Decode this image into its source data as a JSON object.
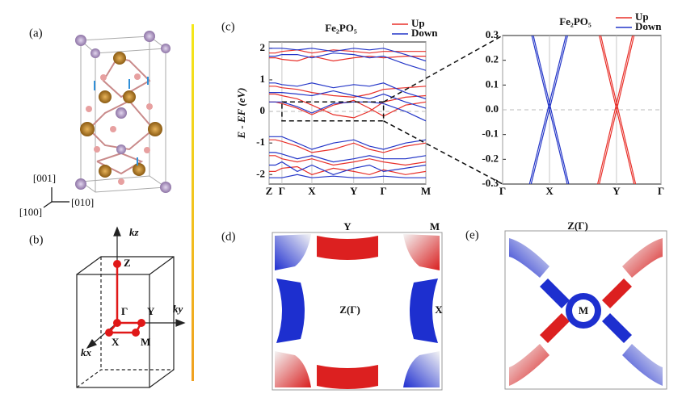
{
  "panel_labels": {
    "a": "(a)",
    "b": "(b)",
    "c": "(c)",
    "d": "(d)",
    "e": "(e)"
  },
  "crystal_axes": [
    "[001]",
    "[010]",
    "[100]"
  ],
  "brillouin_zone": {
    "kz": "kz",
    "ky": "ky",
    "kx": "kx",
    "Z": "Z",
    "G": "Γ",
    "Y": "Y",
    "X": "X",
    "M": "M"
  },
  "fermi_surface_d": {
    "Y": "Y",
    "M": "M",
    "center": "Z(Γ)",
    "X": "X"
  },
  "fermi_surface_e": {
    "top": "Z(Γ)",
    "center": "M"
  },
  "chart_data": [
    {
      "type": "line",
      "title": "Fe₂PO₅",
      "ylabel": "E - EF (eV)",
      "xlim": [
        0,
        1
      ],
      "ylim": [
        -2.3,
        2.2
      ],
      "yticks": [
        -2,
        -1,
        0,
        1,
        2
      ],
      "xticks": [
        {
          "value": 0,
          "label": "Z"
        },
        {
          "value": 0.082,
          "label": "Γ"
        },
        {
          "value": 0.273,
          "label": "X"
        },
        {
          "value": 0.54,
          "label": "Y"
        },
        {
          "value": 0.73,
          "label": "Γ"
        },
        {
          "value": 1,
          "label": "M"
        }
      ],
      "x": [
        0,
        0.04,
        0.082,
        0.18,
        0.273,
        0.41,
        0.54,
        0.64,
        0.73,
        0.87,
        1
      ],
      "series": [
        {
          "name": "Up",
          "color": "#e8302a",
          "lines": [
            {
              "values": [
                1.85,
                1.85,
                1.9,
                1.95,
                1.85,
                1.95,
                1.9,
                1.85,
                1.9,
                1.9,
                1.9
              ]
            },
            {
              "values": [
                1.7,
                1.7,
                1.65,
                1.6,
                1.75,
                1.6,
                1.7,
                1.75,
                1.7,
                1.75,
                1.75
              ]
            },
            {
              "values": [
                0.8,
                0.8,
                0.75,
                0.7,
                0.6,
                0.5,
                0.45,
                0.55,
                0.7,
                0.75,
                0.8
              ]
            },
            {
              "values": [
                0.55,
                0.55,
                0.5,
                0.4,
                0.2,
                -0.1,
                -0.2,
                0.0,
                0.3,
                0.45,
                0.5
              ]
            },
            {
              "values": [
                0.3,
                0.3,
                0.25,
                0.1,
                -0.1,
                0.2,
                0.35,
                0.1,
                -0.15,
                0.2,
                0.3
              ]
            },
            {
              "values": [
                -0.9,
                -0.9,
                -0.95,
                -1.1,
                -1.3,
                -1.2,
                -1.0,
                -1.2,
                -1.3,
                -1.1,
                -1.0
              ]
            },
            {
              "values": [
                -1.4,
                -1.4,
                -1.5,
                -1.6,
                -1.5,
                -1.7,
                -1.6,
                -1.5,
                -1.6,
                -1.7,
                -1.6
              ]
            },
            {
              "values": [
                -1.9,
                -1.9,
                -1.8,
                -1.75,
                -2.0,
                -1.8,
                -1.9,
                -2.0,
                -1.85,
                -2.0,
                -1.9
              ]
            }
          ]
        },
        {
          "name": "Down",
          "color": "#2436c8",
          "lines": [
            {
              "values": [
                2.0,
                2.0,
                2.0,
                1.95,
                2.0,
                1.9,
                2.0,
                1.95,
                2.0,
                1.8,
                1.6
              ]
            },
            {
              "values": [
                1.75,
                1.75,
                1.8,
                1.8,
                1.7,
                1.85,
                1.8,
                1.7,
                1.75,
                1.5,
                1.3
              ]
            },
            {
              "values": [
                0.9,
                0.9,
                0.85,
                0.8,
                0.9,
                0.75,
                0.85,
                0.8,
                0.9,
                0.6,
                0.4
              ]
            },
            {
              "values": [
                0.6,
                0.6,
                0.6,
                0.55,
                0.5,
                0.65,
                0.5,
                0.4,
                0.55,
                0.3,
                0.1
              ]
            },
            {
              "values": [
                0.3,
                0.3,
                0.3,
                0.15,
                -0.05,
                0.25,
                0.3,
                0.3,
                0.25,
                0.0,
                -0.3
              ]
            },
            {
              "values": [
                -0.8,
                -0.8,
                -0.8,
                -1.0,
                -1.2,
                -1.0,
                -0.9,
                -1.1,
                -1.2,
                -1.0,
                -0.9
              ]
            },
            {
              "values": [
                -1.3,
                -1.3,
                -1.35,
                -1.5,
                -1.4,
                -1.6,
                -1.5,
                -1.4,
                -1.5,
                -1.5,
                -1.4
              ]
            },
            {
              "values": [
                -1.7,
                -1.7,
                -1.6,
                -1.9,
                -1.7,
                -2.0,
                -1.8,
                -1.7,
                -1.9,
                -1.8,
                -1.7
              ]
            },
            {
              "values": [
                -2.1,
                -2.1,
                -2.1,
                -2.0,
                -2.1,
                -2.05,
                -2.1,
                -2.1,
                -2.05,
                -2.1,
                -2.1
              ]
            }
          ]
        }
      ]
    },
    {
      "type": "line",
      "title": "Fe₂PO₅",
      "xlim": [
        0,
        1
      ],
      "ylim": [
        -0.3,
        0.3
      ],
      "yticks": [
        -0.3,
        -0.2,
        -0.1,
        {
          "value": 0,
          "label": "0.0"
        },
        0.1,
        0.2,
        0.3
      ],
      "xticks": [
        {
          "value": 0,
          "label": "Γ"
        },
        {
          "value": 0.296,
          "label": "X"
        },
        {
          "value": 0.719,
          "label": "Y"
        },
        {
          "value": 1,
          "label": "Γ"
        }
      ],
      "series": [
        {
          "name": "Up",
          "color": "#e8302a",
          "lines": [
            {
              "x": [
                0.61,
                0.83
              ],
              "values": [
                0.3,
                -0.3
              ]
            },
            {
              "x": [
                0.62,
                0.84
              ],
              "values": [
                0.3,
                -0.3
              ]
            },
            {
              "x": [
                0.83,
                0.61
              ],
              "values": [
                0.3,
                -0.3
              ]
            },
            {
              "x": [
                0.82,
                0.6
              ],
              "values": [
                0.3,
                -0.3
              ]
            }
          ]
        },
        {
          "name": "Down",
          "color": "#2436c8",
          "lines": [
            {
              "x": [
                0.184,
                0.408
              ],
              "values": [
                0.3,
                -0.3
              ]
            },
            {
              "x": [
                0.194,
                0.418
              ],
              "values": [
                0.3,
                -0.3
              ]
            },
            {
              "x": [
                0.41,
                0.18
              ],
              "values": [
                0.3,
                -0.3
              ]
            },
            {
              "x": [
                0.4,
                0.17
              ],
              "values": [
                0.3,
                -0.3
              ]
            }
          ]
        }
      ]
    }
  ]
}
